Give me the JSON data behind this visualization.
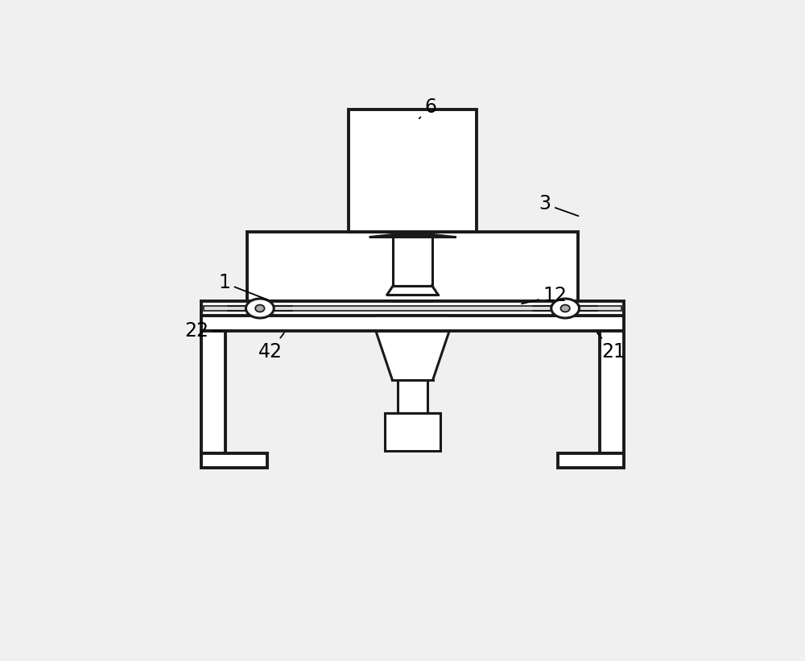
{
  "bg_color": "#f0f0f0",
  "line_color": "#1a1a1a",
  "lw": 2.2,
  "lw_thick": 2.8,
  "label_fontsize": 17,
  "labels": {
    "6": [
      0.535,
      0.945,
      0.51,
      0.92
    ],
    "3": [
      0.76,
      0.755,
      0.83,
      0.73
    ],
    "1": [
      0.13,
      0.6,
      0.22,
      0.565
    ],
    "12": [
      0.78,
      0.575,
      0.71,
      0.558
    ],
    "22": [
      0.075,
      0.505,
      0.13,
      0.505
    ],
    "42": [
      0.22,
      0.465,
      0.25,
      0.505
    ],
    "21": [
      0.895,
      0.465,
      0.86,
      0.505
    ]
  }
}
